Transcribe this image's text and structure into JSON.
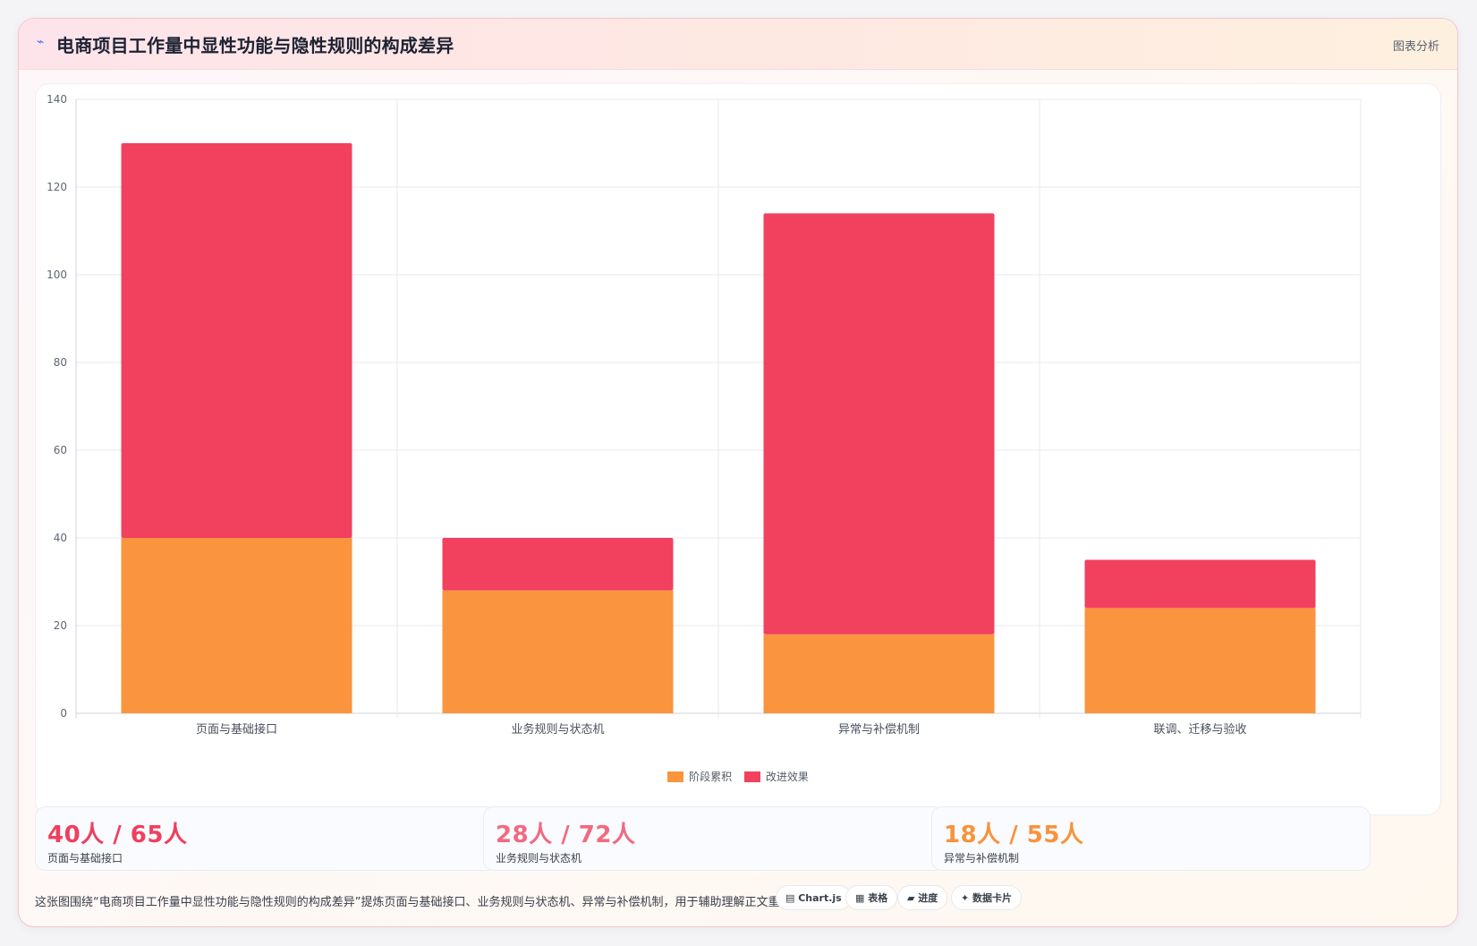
{
  "header": {
    "icon": "wave-icon",
    "title": "电商项目工作量中显性功能与隐性规则的构成差异",
    "right_label": "图表分析"
  },
  "colors": {
    "series_1": "#fa943e",
    "series_2": "#f2405f",
    "stat_1": "#ef3f5e",
    "stat_2": "#f06a82",
    "stat_3": "#f7933d"
  },
  "chart_data": {
    "type": "bar",
    "stacked": true,
    "categories": [
      "页面与基础接口",
      "业务规则与状态机",
      "异常与补偿机制",
      "联调、迁移与验收"
    ],
    "series": [
      {
        "name": "阶段累积",
        "values": [
          40,
          28,
          18,
          24
        ],
        "color": "#fa943e"
      },
      {
        "name": "改进效果",
        "values": [
          90,
          12,
          96,
          11
        ],
        "color": "#f2405f"
      }
    ],
    "ylim": [
      0,
      140
    ],
    "yticks": [
      0,
      20,
      40,
      60,
      80,
      100,
      120,
      140
    ],
    "grid": true,
    "legend_position": "bottom"
  },
  "stats": [
    {
      "value": "40人 / 65人",
      "label": "页面与基础接口"
    },
    {
      "value": "28人 / 72人",
      "label": "业务规则与状态机"
    },
    {
      "value": "18人 / 55人",
      "label": "异常与补偿机制"
    }
  ],
  "footer": {
    "description": "这张图围绕“电商项目工作量中显性功能与隐性规则的构成差异”提炼页面与基础接口、业务规则与状态机、异常与补偿机制，用于辅助理解正文重点。",
    "chips": [
      "▤ Chart.js",
      "▦ 表格",
      "▰ 进度",
      "✦ 数据卡片"
    ]
  }
}
